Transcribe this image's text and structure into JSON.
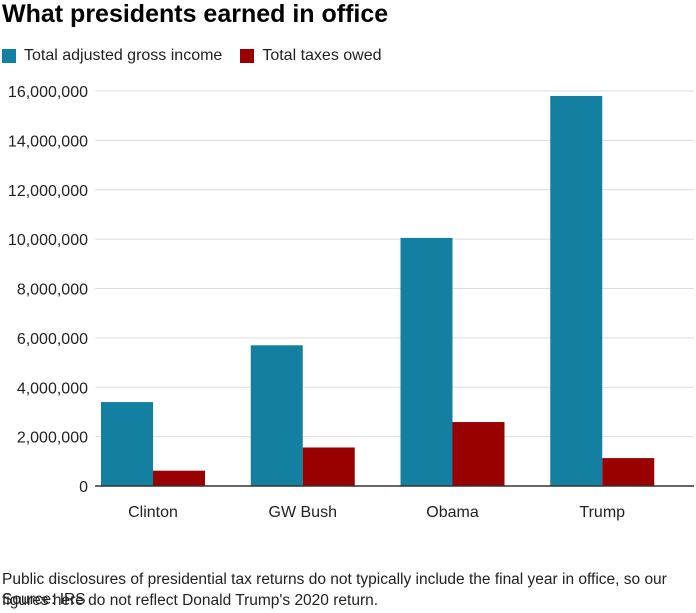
{
  "title": "What presidents earned in office",
  "legend": [
    {
      "label": "Total adjusted gross income",
      "color": "#1380a1"
    },
    {
      "label": "Total taxes owed",
      "color": "#990000"
    }
  ],
  "chart_data": {
    "type": "bar",
    "categories": [
      "Clinton",
      "GW Bush",
      "Obama",
      "Trump"
    ],
    "series": [
      {
        "name": "Total adjusted gross income",
        "color": "#1380a1",
        "values": [
          3400000,
          5700000,
          10050000,
          15800000
        ]
      },
      {
        "name": "Total taxes owed",
        "color": "#990000",
        "values": [
          620000,
          1560000,
          2590000,
          1130000
        ]
      }
    ],
    "ylim": [
      0,
      16000000
    ],
    "yticks": [
      "0",
      "2,000,000",
      "4,000,000",
      "6,000,000",
      "8,000,000",
      "10,000,000",
      "12,000,000",
      "14,000,000",
      "16,000,000"
    ],
    "grid": true,
    "legend_position": "top-left"
  },
  "note": "Public disclosures of presidential tax returns do not typically include the final year in office, so our figures here do not reflect Donald Trump's 2020 return.",
  "source": "Source: IRS"
}
